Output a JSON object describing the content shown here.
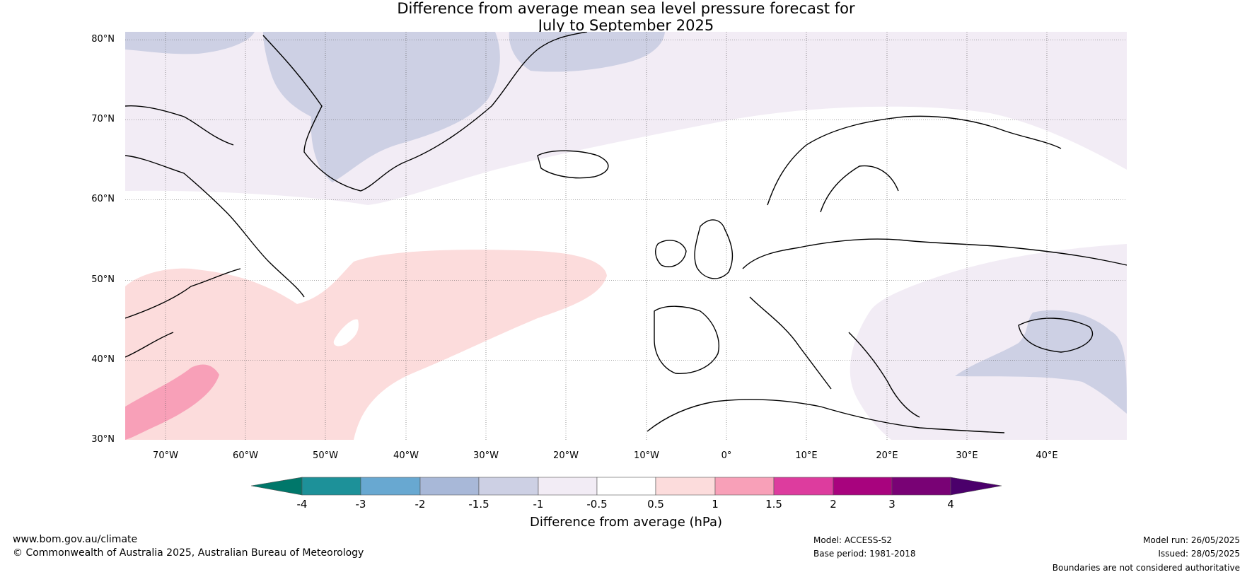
{
  "title_line1": "Difference from average mean sea level pressure forecast for",
  "title_line2": "July to September 2025",
  "latitude_labels": [
    "80°N",
    "70°N",
    "60°N",
    "50°N",
    "40°N",
    "30°N"
  ],
  "longitude_labels": [
    "70°W",
    "60°W",
    "50°W",
    "40°W",
    "30°W",
    "20°W",
    "10°W",
    "0°",
    "10°E",
    "20°E",
    "30°E",
    "40°E"
  ],
  "colorbar": {
    "ticks": [
      "-4",
      "-3",
      "-2",
      "-1.5",
      "-1",
      "-0.5",
      "0.5",
      "1",
      "1.5",
      "2",
      "3",
      "4"
    ],
    "label": "Difference from average (hPa)",
    "colors": [
      "#00776a",
      "#1d9199",
      "#68a8d1",
      "#a8b8d8",
      "#cdd0e4",
      "#f2ecf5",
      "#ffffff",
      "#fcdcdc",
      "#f8a0b8",
      "#dd3c9e",
      "#a8037e",
      "#790275",
      "#4b006b"
    ]
  },
  "footer": {
    "website": "www.bom.gov.au/climate",
    "copyright": "© Commonwealth of Australia 2025, Australian Bureau of Meteorology",
    "model": "Model: ACCESS-S2",
    "base_period": "Base period: 1981-2018",
    "model_run": "Model run: 26/05/2025",
    "issued": "Issued: 28/05/2025",
    "disclaimer": "Boundaries are not considered authoritative"
  }
}
